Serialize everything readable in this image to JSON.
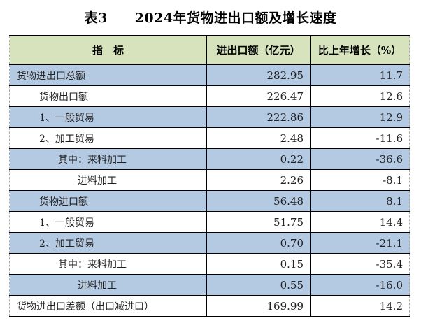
{
  "title": "表3　　2024年货物进出口额及增长速度",
  "table": {
    "headers": [
      "指　标",
      "进出口额（亿元）",
      "比上年增长（%）"
    ],
    "header_bg": "#d6e3bc",
    "stripe_bg": "#b4c9e2",
    "rows": [
      {
        "label": "货物进出口总额",
        "value": "282.95",
        "growth": "11.7",
        "indent": 0,
        "shaded": true
      },
      {
        "label": "货物出口额",
        "value": "226.47",
        "growth": "12.6",
        "indent": 1,
        "shaded": false
      },
      {
        "label": "1、一般贸易",
        "value": "222.86",
        "growth": "12.9",
        "indent": 1,
        "shaded": true
      },
      {
        "label": "2、加工贸易",
        "value": "2.48",
        "growth": "-11.6",
        "indent": 1,
        "shaded": false
      },
      {
        "label": "其中：来料加工",
        "value": "0.22",
        "growth": "-36.6",
        "indent": 2,
        "shaded": true
      },
      {
        "label": "进料加工",
        "value": "2.26",
        "growth": "-8.1",
        "indent": 3,
        "shaded": false
      },
      {
        "label": "货物进口额",
        "value": "56.48",
        "growth": "8.1",
        "indent": 1,
        "shaded": true
      },
      {
        "label": "1、一般贸易",
        "value": "51.75",
        "growth": "14.4",
        "indent": 1,
        "shaded": false
      },
      {
        "label": "2、加工贸易",
        "value": "0.70",
        "growth": "-21.1",
        "indent": 1,
        "shaded": true
      },
      {
        "label": "其中：来料加工",
        "value": "0.15",
        "growth": "-35.4",
        "indent": 2,
        "shaded": false
      },
      {
        "label": "进料加工",
        "value": "0.55",
        "growth": "-16.0",
        "indent": 3,
        "shaded": true
      },
      {
        "label": "货物进出口差额（出口减进口）",
        "value": "169.99",
        "growth": "14.2",
        "indent": 0,
        "shaded": false
      }
    ]
  }
}
